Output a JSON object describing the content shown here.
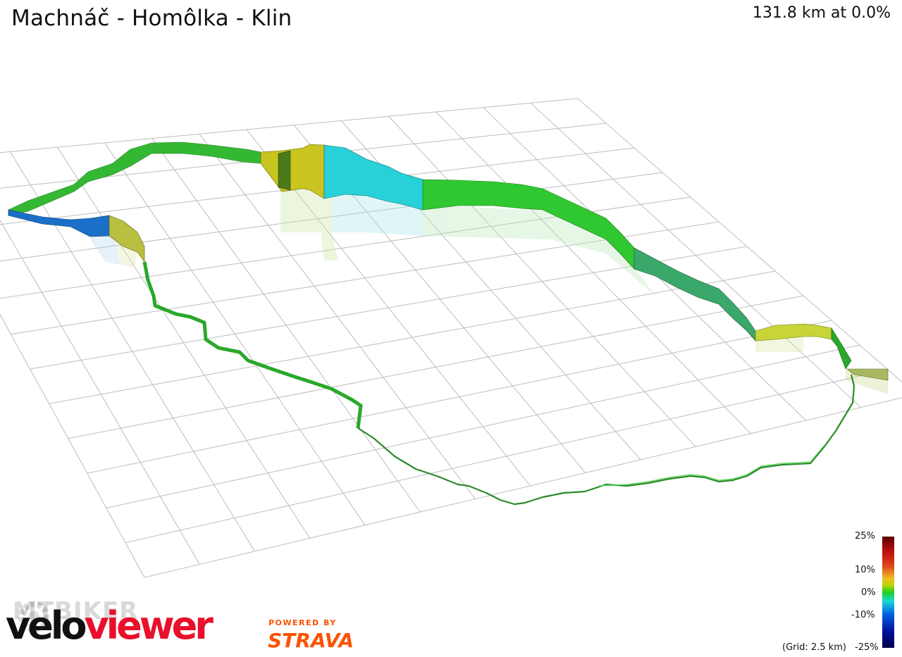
{
  "header": {
    "title": "Machnáč - Homôlka - Klin",
    "summary": "131.8 km at 0.0%"
  },
  "legend": {
    "labels": [
      "25%",
      "10%",
      "0%",
      "-10%",
      "-25%"
    ],
    "grid_note": "(Grid: 2.5 km)"
  },
  "branding": {
    "velo": "velo",
    "viewer": "viewer",
    "watermark": "MTBIKER",
    "powered_by": "POWERED BY",
    "strava": "STRAVA"
  },
  "colors": {
    "flat": "#2fb02f",
    "climb": "#c8c800",
    "descent": "#20c8d0",
    "steep_descent": "#1060c0",
    "brand_red": "#e8102a",
    "strava_orange": "#fc5200"
  }
}
